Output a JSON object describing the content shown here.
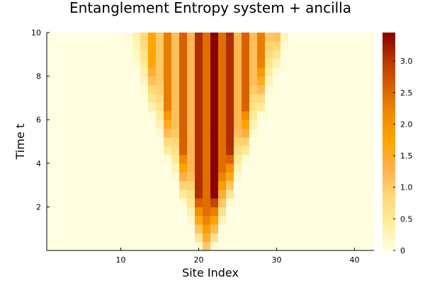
{
  "chart_data": {
    "type": "heatmap",
    "title": "Entanglement Entropy system + ancilla",
    "xlabel": "Site Index",
    "ylabel": "Time t",
    "xlim": [
      0.5,
      42.5
    ],
    "ylim": [
      0,
      10
    ],
    "x_ticks": [
      10,
      20,
      30,
      40
    ],
    "y_ticks": [
      2,
      4,
      6,
      8,
      10
    ],
    "colorbar": {
      "range": [
        0,
        3.45
      ],
      "ticks": [
        0,
        0.5,
        1.0,
        1.5,
        2.0,
        2.5,
        3.0
      ],
      "tick_labels": [
        "0",
        "0.5",
        "1.0",
        "1.5",
        "2.0",
        "2.5",
        "3.0"
      ],
      "colormap": [
        "#fffee0",
        "#ffeda0",
        "#fed976",
        "#feb24c",
        "#ffa500",
        "#f08c00",
        "#d96100",
        "#b83800",
        "#8b0000"
      ]
    },
    "sites": [
      1,
      2,
      3,
      4,
      5,
      6,
      7,
      8,
      9,
      10,
      11,
      12,
      13,
      14,
      15,
      16,
      17,
      18,
      19,
      20,
      21,
      22,
      23,
      24,
      25,
      26,
      27,
      28,
      29,
      30,
      31,
      32,
      33,
      34,
      35,
      36,
      37,
      38,
      39,
      40,
      41,
      42
    ],
    "times": [
      0.2,
      0.6,
      1.0,
      1.4,
      1.8,
      2.2,
      2.6,
      3.0,
      3.4,
      3.8,
      4.2,
      4.6,
      5.0,
      5.4,
      5.8,
      6.2,
      6.6,
      7.0,
      7.4,
      7.8,
      8.2,
      8.6,
      9.0,
      9.4,
      9.8
    ],
    "site_peaks": [
      0,
      0,
      0,
      0,
      0,
      0,
      0,
      0.02,
      0.06,
      0.15,
      0.3,
      0.5,
      0.85,
      1.7,
      1.05,
      2.3,
      1.15,
      2.6,
      1.25,
      3.1,
      2.45,
      3.45,
      2.45,
      3.1,
      1.25,
      2.6,
      1.15,
      2.3,
      1.05,
      1.7,
      0.85,
      0.5,
      0.3,
      0.15,
      0.06,
      0.02,
      0,
      0,
      0,
      0,
      0,
      0
    ],
    "light_cone_center": 21,
    "light_cone_velocity": 1.0,
    "light_cone_width": 2.5
  }
}
